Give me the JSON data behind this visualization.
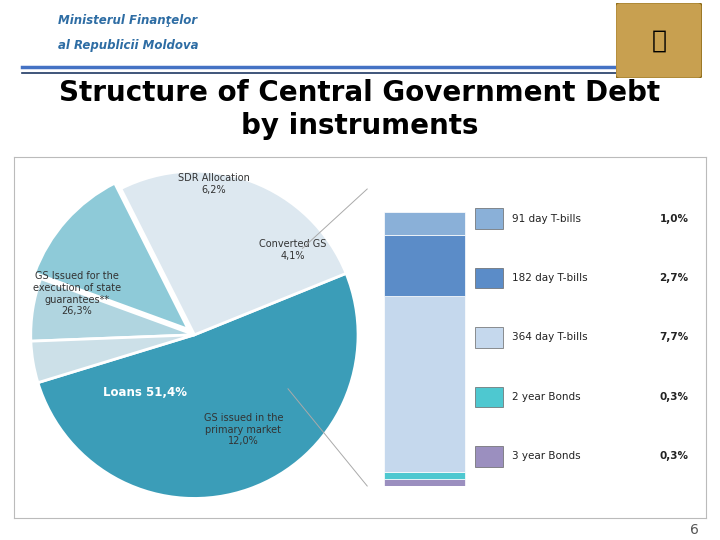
{
  "title": "Structure of Central Government Debt\nby instruments",
  "header_line1": "Ministerul Finanţelor",
  "header_line2": "al Republicii Moldova",
  "pie_labels": [
    "Loans",
    "GS Issued for the\nexecution of state\nguarantees**",
    "GS issued in the\nprimary market",
    "SDR Allocation",
    "Converted GS"
  ],
  "pie_values": [
    51.4,
    26.3,
    12.0,
    6.2,
    4.1
  ],
  "pie_colors": [
    "#3b9db8",
    "#dde8f0",
    "#8ecad8",
    "#b0d5e0",
    "#cce0e8"
  ],
  "pie_startangle": 197,
  "bar_labels": [
    "91 day T-bills",
    "182 day T-bills",
    "364 day T-bills",
    "2 year Bonds",
    "3 year Bonds"
  ],
  "bar_values": [
    1.0,
    2.7,
    7.7,
    0.3,
    0.3
  ],
  "bar_percentages": [
    "1,0%",
    "2,7%",
    "7,7%",
    "0,3%",
    "0,3%"
  ],
  "bar_colors_bottom_to_top": [
    "#9b8fbf",
    "#4ec8d0",
    "#c5d8ed",
    "#5b8cc8",
    "#8ab0d8"
  ],
  "background_color": "#ffffff",
  "header_color": "#2e6da4",
  "title_color": "#000000",
  "slide_number": "6",
  "chart_border_color": "#bbbbbb",
  "divider_color1": "#4472c4",
  "divider_color2": "#1f3864",
  "legend_colors": [
    "#8ab0d8",
    "#5b8cc8",
    "#c5d8ed",
    "#4ec8d0",
    "#9b8fbf"
  ]
}
